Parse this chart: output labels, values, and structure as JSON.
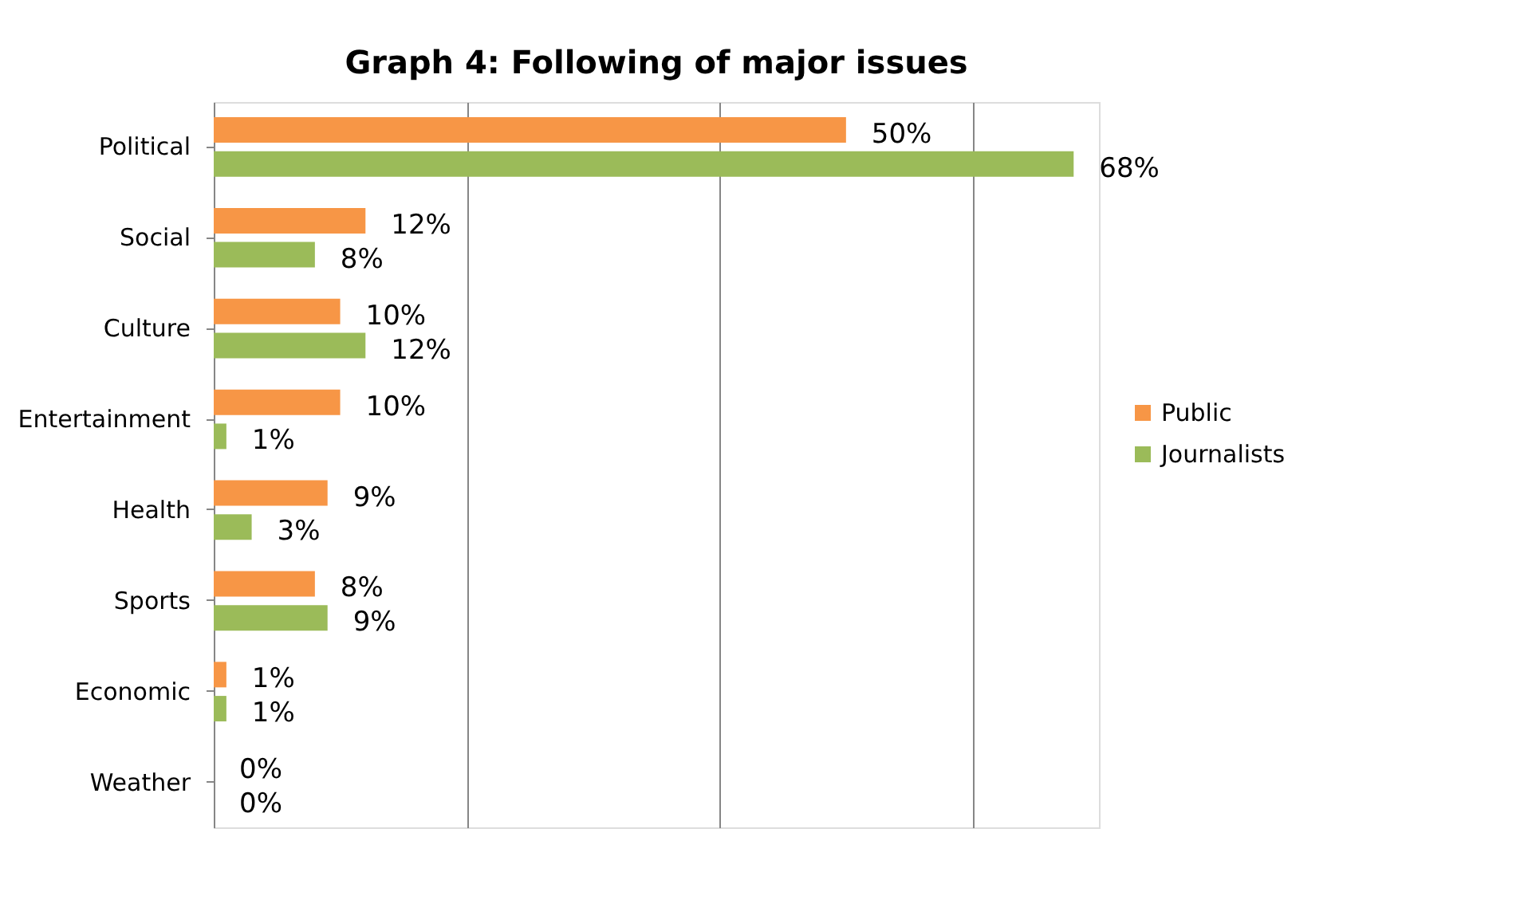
{
  "chart_data": {
    "type": "bar",
    "orientation": "horizontal",
    "title": "Graph 4: Following of major issues",
    "categories": [
      "Political",
      "Social",
      "Culture",
      "Entertainment",
      "Health",
      "Sports",
      "Economic",
      "Weather"
    ],
    "series": [
      {
        "name": "Public",
        "color": "#f79646",
        "values": [
          50,
          12,
          10,
          10,
          9,
          8,
          1,
          0
        ],
        "value_labels": [
          "50%",
          "12%",
          "10%",
          "10%",
          "9%",
          "8%",
          "1%",
          "0%"
        ]
      },
      {
        "name": "Journalists",
        "color": "#9bbb59",
        "values": [
          68,
          8,
          12,
          1,
          3,
          9,
          1,
          0
        ],
        "value_labels": [
          "68%",
          "8%",
          "12%",
          "1%",
          "3%",
          "9%",
          "1%",
          "0%"
        ]
      }
    ],
    "tick_labels": "y",
    "grid": "x",
    "legend": "right"
  }
}
